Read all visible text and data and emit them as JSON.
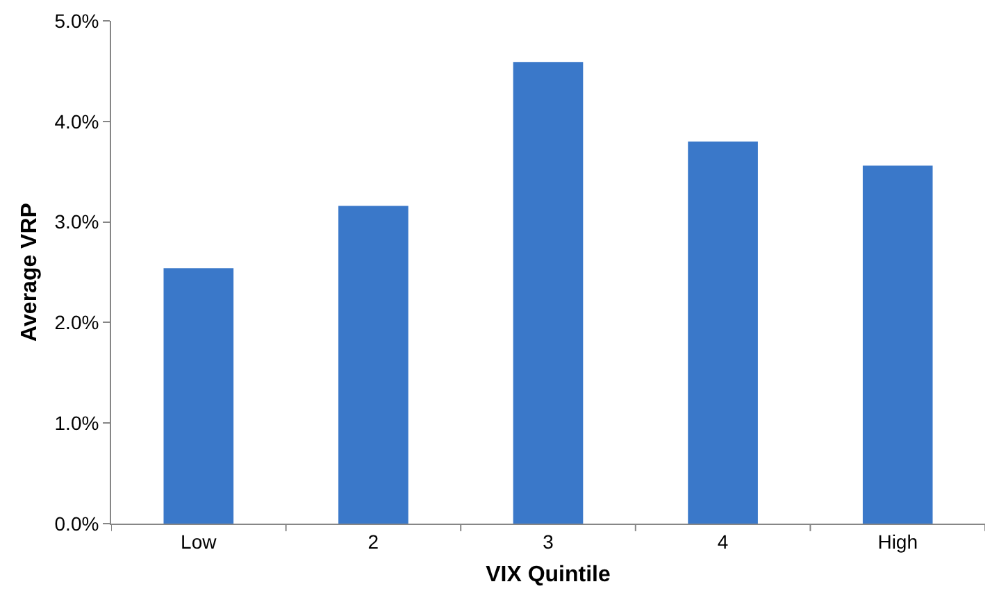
{
  "chart_data": {
    "type": "bar",
    "xlabel": "VIX Quintile",
    "ylabel": "Average VRP",
    "categories": [
      "Low",
      "2",
      "3",
      "4",
      "High"
    ],
    "values": [
      2.54,
      3.16,
      4.59,
      3.8,
      3.56
    ],
    "color": "#3a78c9",
    "ylim": [
      0,
      5
    ],
    "yticks": [
      {
        "value": 0,
        "label": "0.0%"
      },
      {
        "value": 1,
        "label": "1.0%"
      },
      {
        "value": 2,
        "label": "2.0%"
      },
      {
        "value": 3,
        "label": "3.0%"
      },
      {
        "value": 4,
        "label": "4.0%"
      },
      {
        "value": 5,
        "label": "5.0%"
      }
    ],
    "grid": false,
    "legend": false
  }
}
